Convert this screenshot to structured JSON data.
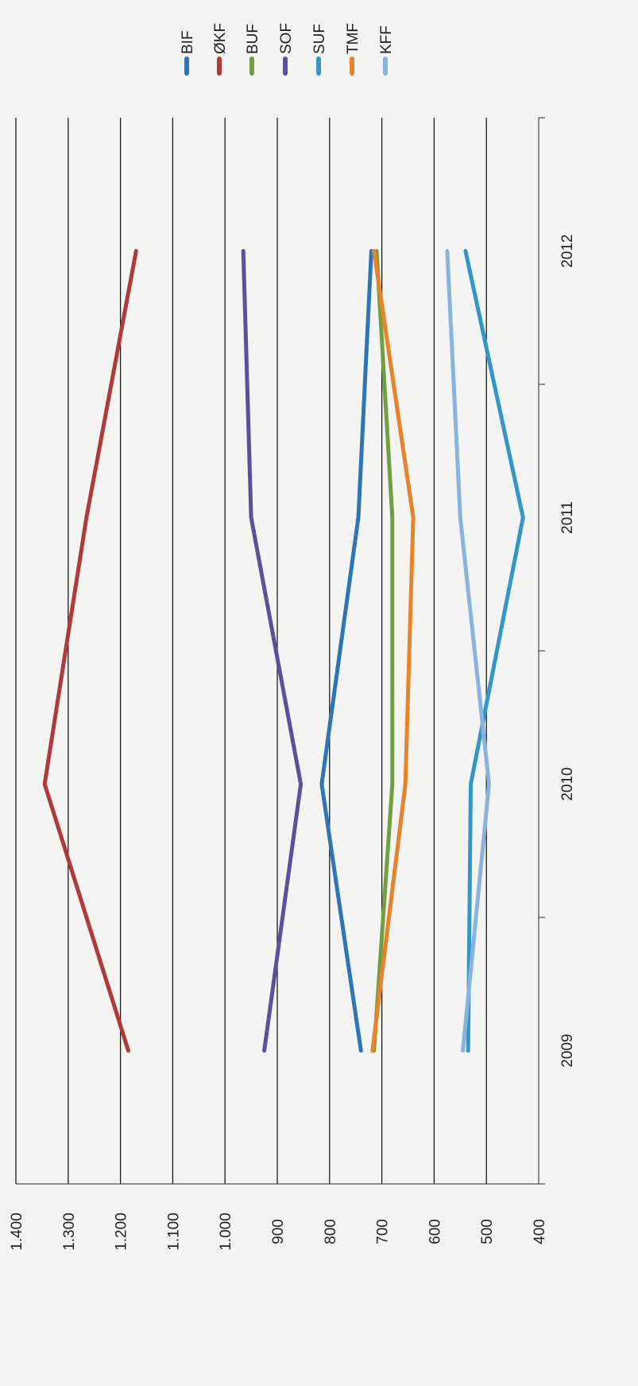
{
  "chart_data": {
    "type": "line",
    "title": "",
    "xlabel": "",
    "ylabel": "",
    "orientation": "rotated-90-clockwise",
    "categories": [
      "2009",
      "2010",
      "2011",
      "2012"
    ],
    "ylim": [
      400,
      1400
    ],
    "y_ticks": [
      400,
      500,
      600,
      700,
      800,
      900,
      1000,
      1100,
      1200,
      1300,
      1400
    ],
    "y_tick_labels": [
      "400",
      "500",
      "600",
      "700",
      "800",
      "900",
      "1.000",
      "1.100",
      "1.200",
      "1.300",
      "1.400"
    ],
    "grid": true,
    "legend_position": "right",
    "series": [
      {
        "name": "BIF",
        "color": "#2e75b6",
        "values": [
          740,
          815,
          745,
          720
        ]
      },
      {
        "name": "ØKF",
        "color": "#b03a3a",
        "values": [
          1185,
          1345,
          1265,
          1170
        ]
      },
      {
        "name": "BUF",
        "color": "#70a040",
        "values": [
          715,
          680,
          680,
          710
        ]
      },
      {
        "name": "SOF",
        "color": "#5b4f9e",
        "values": [
          925,
          855,
          950,
          965
        ]
      },
      {
        "name": "SUF",
        "color": "#3396c8",
        "values": [
          535,
          530,
          430,
          540
        ]
      },
      {
        "name": "TMF",
        "color": "#e8832a",
        "values": [
          718,
          655,
          640,
          715
        ]
      },
      {
        "name": "KFF",
        "color": "#8ab4e0",
        "values": [
          545,
          495,
          550,
          575
        ]
      }
    ]
  }
}
